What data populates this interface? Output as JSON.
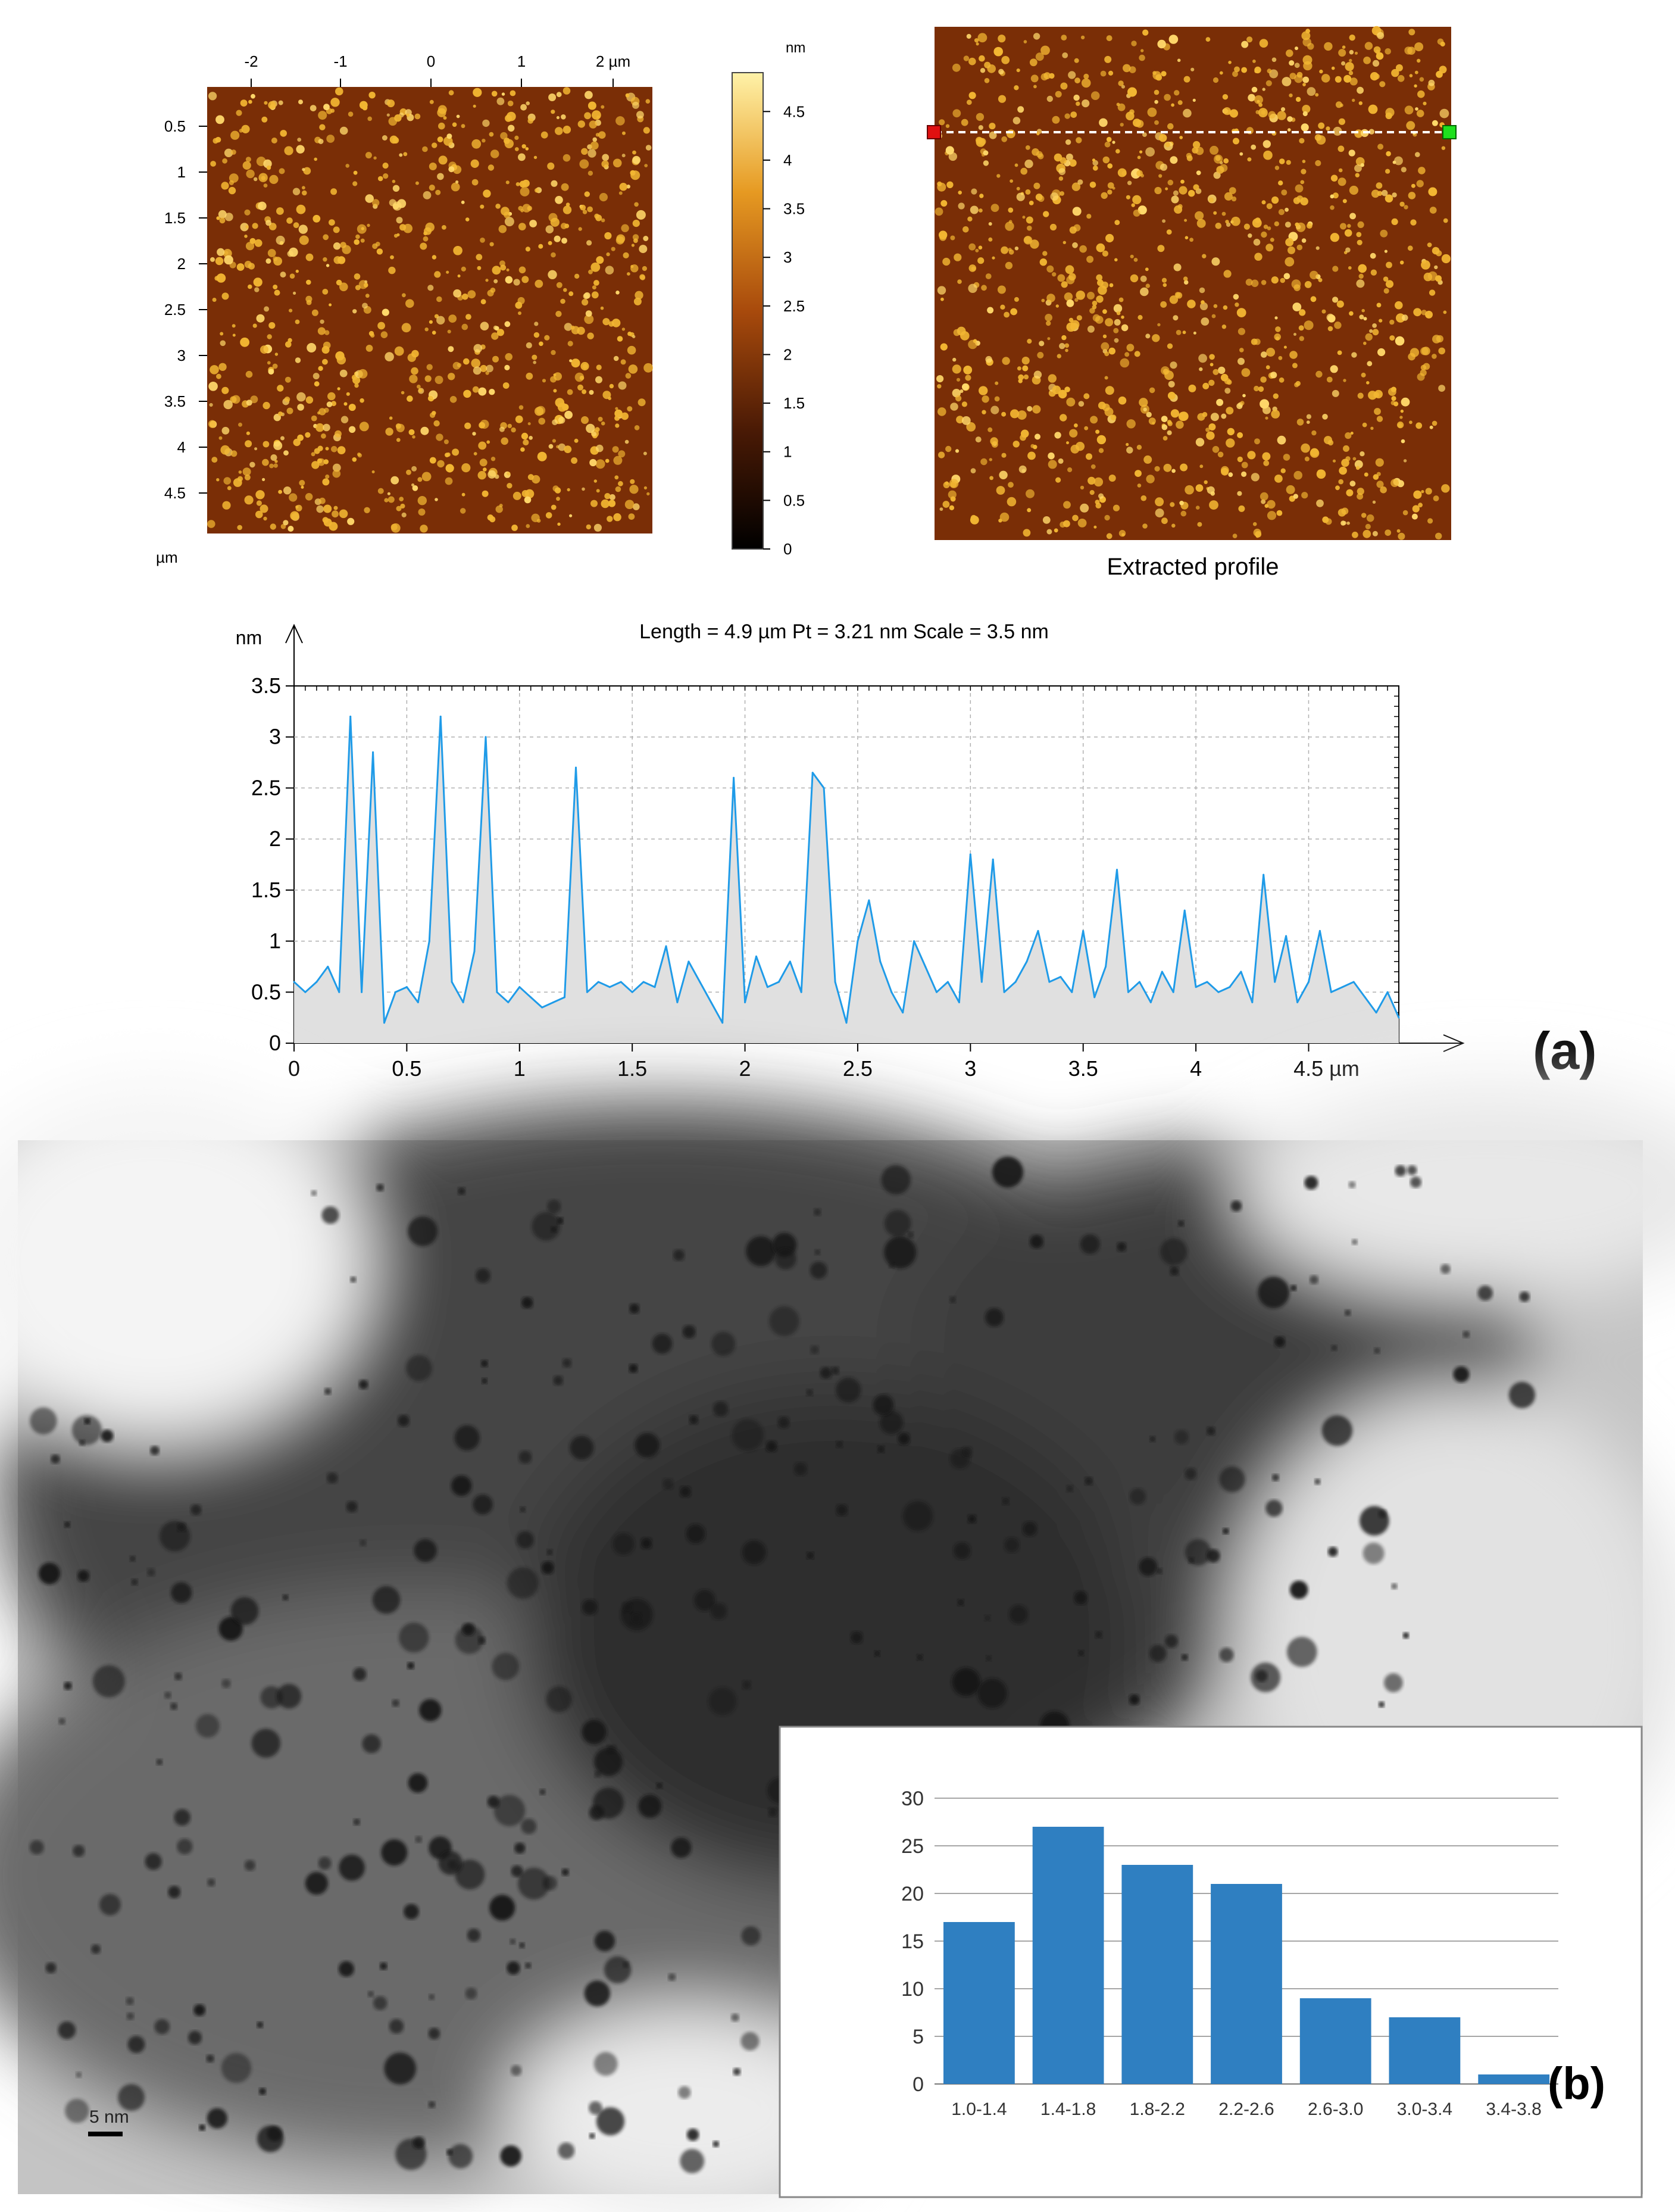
{
  "afm_map_left": {
    "top_axis_labels": [
      "-2",
      "-1",
      "0",
      "1",
      "2 µm"
    ],
    "left_axis_labels": [
      "0.5",
      "1",
      "1.5",
      "2",
      "2.5",
      "3",
      "3.5",
      "4",
      "4.5"
    ],
    "axis_unit": "µm"
  },
  "colorbar": {
    "unit": "nm",
    "ticks": [
      "4.5",
      "4",
      "3.5",
      "3",
      "2.5",
      "2",
      "1.5",
      "1",
      "0.5",
      "0"
    ]
  },
  "afm_map_right": {
    "caption": "Extracted profile"
  },
  "panel_a_label": "(a)",
  "panel_b_label": "(b)",
  "tem": {
    "scale_bar_label": "5 nm"
  },
  "colors": {
    "profile_line": "#1f9be8",
    "profile_fill": "#e0e0e0",
    "histogram_bar": "#2f7fc1",
    "afm_background": "#7a2e06",
    "afm_particle": "#f2b632"
  },
  "chart_data": [
    {
      "type": "line",
      "title": "Length = 4.9 µm  Pt = 3.21 nm  Scale = 3.5 nm",
      "xlabel": "µm",
      "ylabel": "nm",
      "xlim": [
        0,
        4.9
      ],
      "ylim": [
        0,
        3.5
      ],
      "x_tick_labels": [
        "0",
        "0.5",
        "1",
        "1.5",
        "2",
        "2.5",
        "3",
        "3.5",
        "4",
        "4.5 µm"
      ],
      "y_tick_labels": [
        "0",
        "0.5",
        "1",
        "1.5",
        "2",
        "2.5",
        "3",
        "3.5"
      ],
      "grid": true,
      "fill_under": true,
      "x": [
        0.0,
        0.05,
        0.1,
        0.15,
        0.2,
        0.25,
        0.3,
        0.35,
        0.4,
        0.45,
        0.5,
        0.55,
        0.6,
        0.65,
        0.7,
        0.75,
        0.8,
        0.85,
        0.9,
        0.95,
        1.0,
        1.05,
        1.1,
        1.15,
        1.2,
        1.25,
        1.3,
        1.35,
        1.4,
        1.45,
        1.5,
        1.55,
        1.6,
        1.65,
        1.7,
        1.75,
        1.8,
        1.85,
        1.9,
        1.95,
        2.0,
        2.05,
        2.1,
        2.15,
        2.2,
        2.25,
        2.3,
        2.35,
        2.4,
        2.45,
        2.5,
        2.55,
        2.6,
        2.65,
        2.7,
        2.75,
        2.8,
        2.85,
        2.9,
        2.95,
        3.0,
        3.05,
        3.1,
        3.15,
        3.2,
        3.25,
        3.3,
        3.35,
        3.4,
        3.45,
        3.5,
        3.55,
        3.6,
        3.65,
        3.7,
        3.75,
        3.8,
        3.85,
        3.9,
        3.95,
        4.0,
        4.05,
        4.1,
        4.15,
        4.2,
        4.25,
        4.3,
        4.35,
        4.4,
        4.45,
        4.5,
        4.55,
        4.6,
        4.65,
        4.7,
        4.75,
        4.8,
        4.85,
        4.9
      ],
      "values": [
        0.6,
        0.5,
        0.6,
        0.75,
        0.5,
        3.2,
        0.5,
        2.85,
        0.2,
        0.5,
        0.55,
        0.4,
        1.0,
        3.2,
        0.6,
        0.4,
        0.9,
        3.0,
        0.5,
        0.4,
        0.55,
        0.45,
        0.35,
        0.4,
        0.45,
        2.7,
        0.5,
        0.6,
        0.55,
        0.6,
        0.5,
        0.6,
        0.55,
        0.95,
        0.4,
        0.8,
        0.6,
        0.4,
        0.2,
        2.6,
        0.4,
        0.85,
        0.55,
        0.6,
        0.8,
        0.5,
        2.65,
        2.5,
        0.6,
        0.2,
        1.0,
        1.4,
        0.8,
        0.5,
        0.3,
        1.0,
        0.75,
        0.5,
        0.6,
        0.4,
        1.85,
        0.6,
        1.8,
        0.5,
        0.6,
        0.8,
        1.1,
        0.6,
        0.65,
        0.5,
        1.1,
        0.45,
        0.75,
        1.7,
        0.5,
        0.6,
        0.4,
        0.7,
        0.5,
        1.3,
        0.55,
        0.6,
        0.5,
        0.55,
        0.7,
        0.4,
        1.65,
        0.6,
        1.05,
        0.4,
        0.6,
        1.1,
        0.5,
        0.55,
        0.6,
        0.45,
        0.3,
        0.5,
        0.25
      ]
    },
    {
      "type": "bar",
      "categories": [
        "1.0-1.4",
        "1.4-1.8",
        "1.8-2.2",
        "2.2-2.6",
        "2.6-3.0",
        "3.0-3.4",
        "3.4-3.8"
      ],
      "values": [
        17,
        27,
        23,
        21,
        9,
        7,
        1
      ],
      "ylim": [
        0,
        30
      ],
      "y_tick_labels": [
        "0",
        "5",
        "10",
        "15",
        "20",
        "25",
        "30"
      ],
      "title": "",
      "xlabel": "",
      "ylabel": "",
      "grid": true
    }
  ]
}
